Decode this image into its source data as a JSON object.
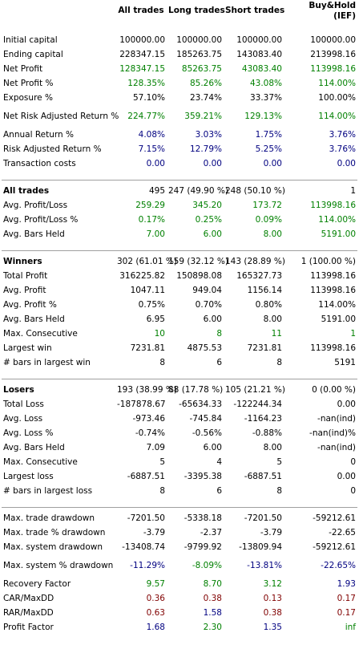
{
  "colors": {
    "green": "#008000",
    "blue": "#000080",
    "red": "#800000",
    "separator": "#a0a0a0"
  },
  "headers": [
    "All trades",
    "Long trades",
    "Short trades",
    "Buy&Hold\n(IEF)"
  ],
  "sections": [
    {
      "title": "",
      "rows": [
        {
          "label": "Initial capital",
          "values": [
            "100000.00",
            "100000.00",
            "100000.00",
            "100000.00"
          ],
          "color": "k"
        },
        {
          "label": "Ending capital",
          "values": [
            "228347.15",
            "185263.75",
            "143083.40",
            "213998.16"
          ],
          "color": "k"
        },
        {
          "label": "Net Profit",
          "values": [
            "128347.15",
            "85263.75",
            "43083.40",
            "113998.16"
          ],
          "color": "g"
        },
        {
          "label": "Net Profit %",
          "values": [
            "128.35%",
            "85.26%",
            "43.08%",
            "114.00%"
          ],
          "color": "g"
        },
        {
          "label": "Exposure %",
          "values": [
            "57.10%",
            "23.74%",
            "33.37%",
            "100.00%"
          ],
          "color": "k"
        },
        {
          "label": "Net Risk Adjusted Return %",
          "values": [
            "224.77%",
            "359.21%",
            "129.13%",
            "114.00%"
          ],
          "color": "g",
          "tall": true
        },
        {
          "label": "Annual Return %",
          "values": [
            "4.08%",
            "3.03%",
            "1.75%",
            "3.76%"
          ],
          "color": "b"
        },
        {
          "label": "Risk Adjusted Return %",
          "values": [
            "7.15%",
            "12.79%",
            "5.25%",
            "3.76%"
          ],
          "color": "b"
        },
        {
          "label": "Transaction costs",
          "values": [
            "0.00",
            "0.00",
            "0.00",
            "0.00"
          ],
          "color": "b"
        }
      ]
    },
    {
      "title": "All trades",
      "titleValues": [
        "495",
        "247 (49.90 %)",
        "248 (50.10 %)",
        "1"
      ],
      "rows": [
        {
          "label": "Avg. Profit/Loss",
          "values": [
            "259.29",
            "345.20",
            "173.72",
            "113998.16"
          ],
          "color": "g"
        },
        {
          "label": "Avg. Profit/Loss %",
          "values": [
            "0.17%",
            "0.25%",
            "0.09%",
            "114.00%"
          ],
          "color": "g"
        },
        {
          "label": "Avg. Bars Held",
          "values": [
            "7.00",
            "6.00",
            "8.00",
            "5191.00"
          ],
          "color": "g"
        }
      ]
    },
    {
      "title": "Winners",
      "titleValues": [
        "302 (61.01 %)",
        "159 (32.12 %)",
        "143 (28.89 %)",
        "1 (100.00 %)"
      ],
      "rows": [
        {
          "label": "Total Profit",
          "values": [
            "316225.82",
            "150898.08",
            "165327.73",
            "113998.16"
          ],
          "color": "k"
        },
        {
          "label": "Avg. Profit",
          "values": [
            "1047.11",
            "949.04",
            "1156.14",
            "113998.16"
          ],
          "color": "k"
        },
        {
          "label": "Avg. Profit %",
          "values": [
            "0.75%",
            "0.70%",
            "0.80%",
            "114.00%"
          ],
          "color": "k"
        },
        {
          "label": "Avg. Bars Held",
          "values": [
            "6.95",
            "6.00",
            "8.00",
            "5191.00"
          ],
          "color": "k"
        },
        {
          "label": "Max. Consecutive",
          "values": [
            "10",
            "8",
            "11",
            "1"
          ],
          "color": "g"
        },
        {
          "label": "Largest win",
          "values": [
            "7231.81",
            "4875.53",
            "7231.81",
            "113998.16"
          ],
          "color": "k"
        },
        {
          "label": "# bars in largest win",
          "values": [
            "8",
            "6",
            "8",
            "5191"
          ],
          "color": "k"
        }
      ]
    },
    {
      "title": "Losers",
      "titleValues": [
        "193 (38.99 %)",
        "88 (17.78 %)",
        "105 (21.21 %)",
        "0 (0.00 %)"
      ],
      "rows": [
        {
          "label": "Total Loss",
          "values": [
            "-187878.67",
            "-65634.33",
            "-122244.34",
            "0.00"
          ],
          "color": "k"
        },
        {
          "label": "Avg. Loss",
          "values": [
            "-973.46",
            "-745.84",
            "-1164.23",
            "-nan(ind)"
          ],
          "color": "k"
        },
        {
          "label": "Avg. Loss %",
          "values": [
            "-0.74%",
            "-0.56%",
            "-0.88%",
            "-nan(ind)%"
          ],
          "color": "k"
        },
        {
          "label": "Avg. Bars Held",
          "values": [
            "7.09",
            "6.00",
            "8.00",
            "-nan(ind)"
          ],
          "color": "k"
        },
        {
          "label": "Max. Consecutive",
          "values": [
            "5",
            "4",
            "5",
            "0"
          ],
          "color": "k"
        },
        {
          "label": "Largest loss",
          "values": [
            "-6887.51",
            "-3395.38",
            "-6887.51",
            "0.00"
          ],
          "color": "k"
        },
        {
          "label": "# bars in largest loss",
          "values": [
            "8",
            "6",
            "8",
            "0"
          ],
          "color": "k"
        }
      ]
    },
    {
      "title": "",
      "rows": [
        {
          "label": "Max. trade drawdown",
          "values": [
            "-7201.50",
            "-5338.18",
            "-7201.50",
            "-59212.61"
          ],
          "color": "k"
        },
        {
          "label": "Max. trade % drawdown",
          "values": [
            "-3.79",
            "-2.37",
            "-3.79",
            "-22.65"
          ],
          "color": "k"
        },
        {
          "label": "Max. system drawdown",
          "values": [
            "-13408.74",
            "-9799.92",
            "-13809.94",
            "-59212.61"
          ],
          "color": "k"
        },
        {
          "label": "Max. system % drawdown",
          "values": [
            "-11.29%",
            "-8.09%",
            "-13.81%",
            "-22.65%"
          ],
          "colors": [
            "b",
            "g",
            "b",
            "b"
          ],
          "tall": true
        },
        {
          "label": "Recovery Factor",
          "values": [
            "9.57",
            "8.70",
            "3.12",
            "1.93"
          ],
          "colors": [
            "g",
            "g",
            "g",
            "b"
          ]
        },
        {
          "label": "CAR/MaxDD",
          "values": [
            "0.36",
            "0.38",
            "0.13",
            "0.17"
          ],
          "color": "rd"
        },
        {
          "label": "RAR/MaxDD",
          "values": [
            "0.63",
            "1.58",
            "0.38",
            "0.17"
          ],
          "colors": [
            "rd",
            "b",
            "rd",
            "rd"
          ]
        },
        {
          "label": "Profit Factor",
          "values": [
            "1.68",
            "2.30",
            "1.35",
            "inf"
          ],
          "colors": [
            "b",
            "g",
            "b",
            "g"
          ]
        }
      ]
    }
  ]
}
